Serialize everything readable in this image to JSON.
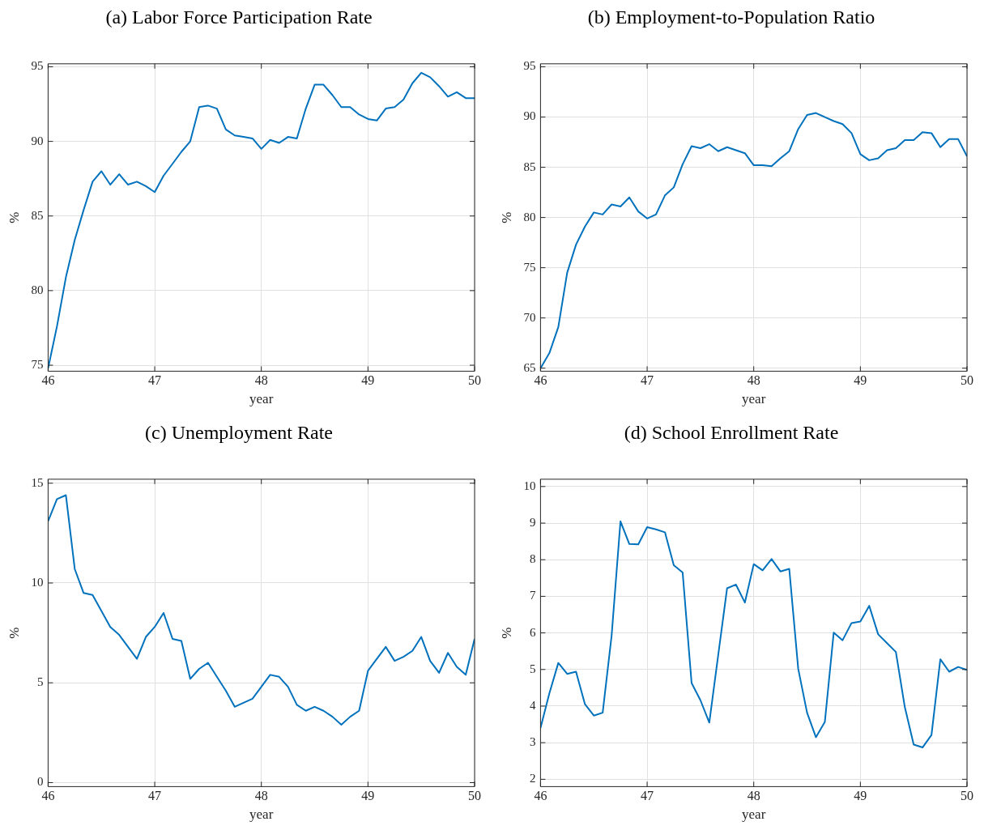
{
  "chart_data": [
    {
      "type": "line",
      "title": "(a) Labor Force Participation Rate",
      "xlabel": "year",
      "ylabel": "%",
      "grid": true,
      "xlim": [
        46,
        50
      ],
      "xticks": [
        46,
        47,
        48,
        49,
        50
      ],
      "ylim": [
        74.6,
        95.2
      ],
      "yticks": [
        75,
        80,
        85,
        90,
        95
      ],
      "x": [
        46,
        46.083,
        46.167,
        46.25,
        46.333,
        46.417,
        46.5,
        46.583,
        46.667,
        46.75,
        46.833,
        46.917,
        47,
        47.083,
        47.167,
        47.25,
        47.333,
        47.417,
        47.5,
        47.583,
        47.667,
        47.75,
        47.833,
        47.917,
        48,
        48.083,
        48.167,
        48.25,
        48.333,
        48.417,
        48.5,
        48.583,
        48.667,
        48.75,
        48.833,
        48.917,
        49,
        49.083,
        49.167,
        49.25,
        49.333,
        49.417,
        49.5,
        49.583,
        49.667,
        49.75,
        49.833,
        49.917,
        50
      ],
      "series": [
        {
          "color": "#0072bd",
          "values": [
            74.8,
            77.6,
            80.9,
            83.4,
            85.4,
            87.3,
            88.0,
            87.1,
            87.8,
            87.1,
            87.3,
            87.0,
            86.6,
            87.7,
            88.5,
            89.3,
            90.0,
            92.3,
            92.4,
            92.2,
            90.8,
            90.4,
            90.3,
            90.2,
            89.5,
            90.1,
            89.9,
            90.3,
            90.2,
            92.2,
            93.8,
            93.8,
            93.1,
            92.3,
            92.3,
            91.8,
            91.5,
            91.4,
            92.2,
            92.3,
            92.8,
            93.9,
            94.6,
            94.3,
            93.7,
            93.0,
            93.3,
            92.9,
            92.9
          ]
        }
      ]
    },
    {
      "type": "line",
      "title": "(b) Employment-to-Population Ratio",
      "xlabel": "year",
      "ylabel": "%",
      "grid": true,
      "xlim": [
        46,
        50
      ],
      "xticks": [
        46,
        47,
        48,
        49,
        50
      ],
      "ylim": [
        64.7,
        95.3
      ],
      "yticks": [
        65,
        70,
        75,
        80,
        85,
        90,
        95
      ],
      "x": [
        46,
        46.083,
        46.167,
        46.25,
        46.333,
        46.417,
        46.5,
        46.583,
        46.667,
        46.75,
        46.833,
        46.917,
        47,
        47.083,
        47.167,
        47.25,
        47.333,
        47.417,
        47.5,
        47.583,
        47.667,
        47.75,
        47.833,
        47.917,
        48,
        48.083,
        48.167,
        48.25,
        48.333,
        48.417,
        48.5,
        48.583,
        48.667,
        48.75,
        48.833,
        48.917,
        49,
        49.083,
        49.167,
        49.25,
        49.333,
        49.417,
        49.5,
        49.583,
        49.667,
        49.75,
        49.833,
        49.917,
        50
      ],
      "series": [
        {
          "color": "#0072bd",
          "values": [
            65.0,
            66.5,
            69.1,
            74.5,
            77.3,
            79.1,
            80.5,
            80.3,
            81.3,
            81.1,
            82.0,
            80.6,
            79.9,
            80.3,
            82.2,
            83.0,
            85.3,
            87.1,
            86.9,
            87.3,
            86.6,
            87.0,
            86.7,
            86.4,
            85.2,
            85.2,
            85.1,
            85.9,
            86.6,
            88.8,
            90.2,
            90.4,
            90.0,
            89.6,
            89.3,
            88.4,
            86.3,
            85.7,
            85.9,
            86.7,
            86.9,
            87.7,
            87.7,
            88.5,
            88.4,
            87.0,
            87.8,
            87.8,
            86.1
          ]
        }
      ]
    },
    {
      "type": "line",
      "title": "(c) Unemployment Rate",
      "xlabel": "year",
      "ylabel": "%",
      "grid": true,
      "xlim": [
        46,
        50
      ],
      "xticks": [
        46,
        47,
        48,
        49,
        50
      ],
      "ylim": [
        -0.2,
        15.2
      ],
      "yticks": [
        0,
        5,
        10,
        15
      ],
      "x": [
        46,
        46.083,
        46.167,
        46.25,
        46.333,
        46.417,
        46.5,
        46.583,
        46.667,
        46.75,
        46.833,
        46.917,
        47,
        47.083,
        47.167,
        47.25,
        47.333,
        47.417,
        47.5,
        47.583,
        47.667,
        47.75,
        47.833,
        47.917,
        48,
        48.083,
        48.167,
        48.25,
        48.333,
        48.417,
        48.5,
        48.583,
        48.667,
        48.75,
        48.833,
        48.917,
        49,
        49.083,
        49.167,
        49.25,
        49.333,
        49.417,
        49.5,
        49.583,
        49.667,
        49.75,
        49.833,
        49.917,
        50
      ],
      "series": [
        {
          "color": "#0072bd",
          "values": [
            13.1,
            14.2,
            14.4,
            10.7,
            9.5,
            9.4,
            8.6,
            7.8,
            7.4,
            6.8,
            6.2,
            7.3,
            7.8,
            8.5,
            7.2,
            7.1,
            5.2,
            5.7,
            6.0,
            5.3,
            4.6,
            3.8,
            4.0,
            4.2,
            4.8,
            5.4,
            5.3,
            4.8,
            3.9,
            3.6,
            3.8,
            3.6,
            3.3,
            2.9,
            3.3,
            3.6,
            5.6,
            6.2,
            6.8,
            6.1,
            6.3,
            6.6,
            7.3,
            6.1,
            5.5,
            6.5,
            5.8,
            5.4,
            7.2
          ]
        }
      ]
    },
    {
      "type": "line",
      "title": "(d) School Enrollment Rate",
      "xlabel": "year",
      "ylabel": "%",
      "grid": true,
      "xlim": [
        46,
        50
      ],
      "xticks": [
        46,
        47,
        48,
        49,
        50
      ],
      "ylim": [
        1.8,
        10.2
      ],
      "yticks": [
        2,
        3,
        4,
        5,
        6,
        7,
        8,
        9,
        10
      ],
      "x": [
        46,
        46.083,
        46.167,
        46.25,
        46.333,
        46.417,
        46.5,
        46.583,
        46.667,
        46.75,
        46.833,
        46.917,
        47,
        47.083,
        47.167,
        47.25,
        47.333,
        47.417,
        47.5,
        47.583,
        47.667,
        47.75,
        47.833,
        47.917,
        48,
        48.083,
        48.167,
        48.25,
        48.333,
        48.417,
        48.5,
        48.583,
        48.667,
        48.75,
        48.833,
        48.917,
        49,
        49.083,
        49.167,
        49.25,
        49.333,
        49.417,
        49.5,
        49.583,
        49.667,
        49.75,
        49.833,
        49.917,
        50
      ],
      "series": [
        {
          "color": "#0072bd",
          "values": [
            3.4,
            4.35,
            5.18,
            4.88,
            4.94,
            4.05,
            3.74,
            3.82,
            5.93,
            9.05,
            8.43,
            8.42,
            8.89,
            8.83,
            8.75,
            7.85,
            7.65,
            4.63,
            4.16,
            3.55,
            5.4,
            7.22,
            7.32,
            6.83,
            7.88,
            7.71,
            8.02,
            7.68,
            7.75,
            5.02,
            3.82,
            3.15,
            3.57,
            6.01,
            5.8,
            6.27,
            6.31,
            6.74,
            5.96,
            5.72,
            5.48,
            3.97,
            2.95,
            2.87,
            3.21,
            5.28,
            4.94,
            5.07,
            4.99
          ]
        }
      ]
    }
  ]
}
